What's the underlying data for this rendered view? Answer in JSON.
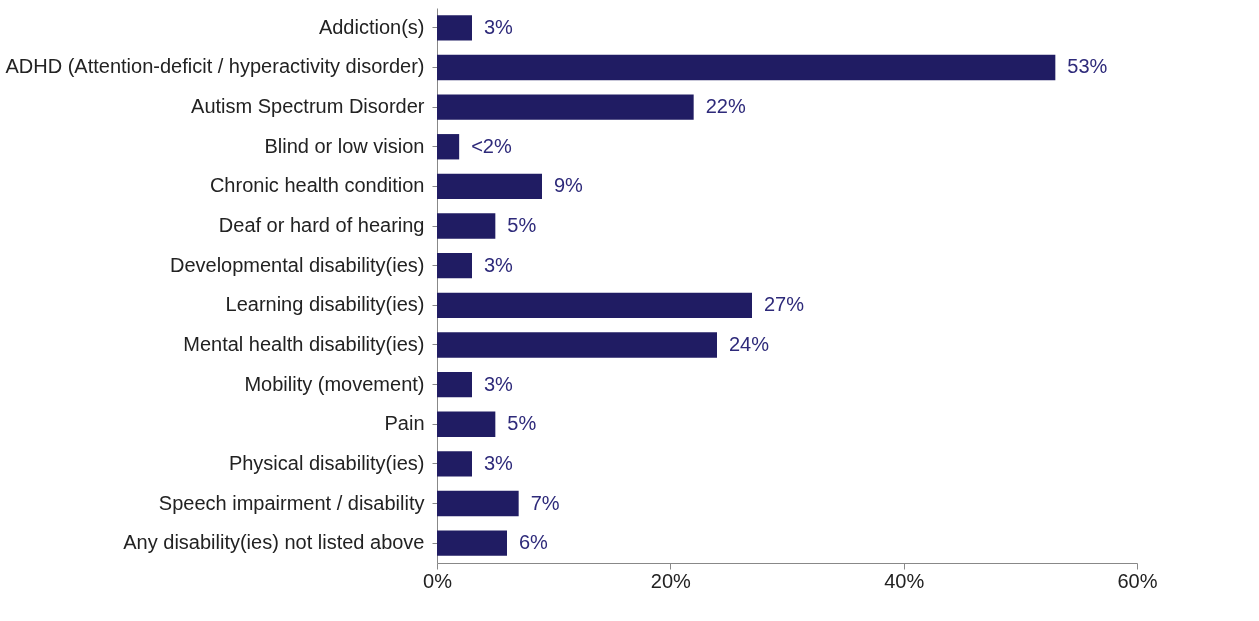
{
  "chart_data": {
    "type": "bar",
    "orientation": "horizontal",
    "categories": [
      "Addiction(s)",
      "ADHD (Attention-deficit / hyperactivity disorder)",
      "Autism Spectrum Disorder",
      "Blind or low vision",
      "Chronic health condition",
      "Deaf or hard of hearing",
      "Developmental disability(ies)",
      "Learning disability(ies)",
      "Mental health disability(ies)",
      "Mobility (movement)",
      "Pain",
      "Physical disability(ies)",
      "Speech impairment / disability",
      "Any disability(ies) not listed above"
    ],
    "values": [
      3,
      53,
      22,
      1.9,
      9,
      5,
      3,
      27,
      24,
      3,
      5,
      3,
      7,
      6
    ],
    "value_labels": [
      "3%",
      "53%",
      "22%",
      "<2%",
      "9%",
      "5%",
      "3%",
      "27%",
      "24%",
      "3%",
      "5%",
      "3%",
      "7%",
      "6%"
    ],
    "color": "#201c63",
    "xlim": [
      0,
      60
    ],
    "xticks": [
      {
        "value": 0,
        "label": "0%"
      },
      {
        "value": 20,
        "label": "20%"
      },
      {
        "value": 40,
        "label": "40%"
      },
      {
        "value": 60,
        "label": "60%"
      }
    ],
    "grid": false
  }
}
